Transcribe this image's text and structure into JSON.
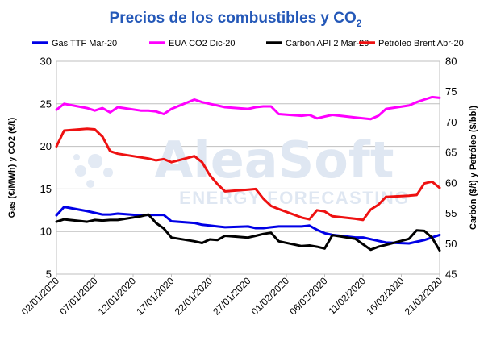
{
  "chart_data": {
    "type": "line",
    "title": {
      "main": "Precios de los combustibles y CO",
      "sub": "2"
    },
    "ylabel_left": "Gas (€/MWh) y CO2 (€/t)",
    "ylabel_right": "Carbón ($/t) y Petróleo ($/bbl)",
    "ylim_left": [
      5,
      30
    ],
    "ylim_right": [
      45,
      80
    ],
    "yticks_left": [
      "5",
      "10",
      "15",
      "20",
      "25",
      "30"
    ],
    "yticks_right": [
      "45",
      "50",
      "55",
      "60",
      "65",
      "70",
      "75",
      "80"
    ],
    "xlim": [
      "2020-01-02",
      "2020-02-21"
    ],
    "xticks": [
      "02/01/2020",
      "07/01/2020",
      "12/01/2020",
      "17/01/2020",
      "22/01/2020",
      "27/01/2020",
      "01/02/2020",
      "06/02/2020",
      "11/02/2020",
      "16/02/2020",
      "21/02/2020"
    ],
    "grid": "horizontal",
    "legend_position": "top",
    "watermark": {
      "line1": "AleaSoft",
      "line2": "ENERGY FORECASTING"
    },
    "series": [
      {
        "name": "Gas TTF Mar-20",
        "axis": "left",
        "color": "#0000e6",
        "points": [
          [
            "2020-01-02",
            11.9
          ],
          [
            "2020-01-03",
            12.9
          ],
          [
            "2020-01-06",
            12.4
          ],
          [
            "2020-01-07",
            12.2
          ],
          [
            "2020-01-08",
            12.0
          ],
          [
            "2020-01-09",
            12.0
          ],
          [
            "2020-01-10",
            12.1
          ],
          [
            "2020-01-13",
            11.9
          ],
          [
            "2020-01-14",
            11.95
          ],
          [
            "2020-01-15",
            11.95
          ],
          [
            "2020-01-16",
            11.95
          ],
          [
            "2020-01-17",
            11.2
          ],
          [
            "2020-01-20",
            11.0
          ],
          [
            "2020-01-21",
            10.8
          ],
          [
            "2020-01-22",
            10.7
          ],
          [
            "2020-01-23",
            10.6
          ],
          [
            "2020-01-24",
            10.5
          ],
          [
            "2020-01-27",
            10.6
          ],
          [
            "2020-01-28",
            10.4
          ],
          [
            "2020-01-29",
            10.4
          ],
          [
            "2020-01-30",
            10.5
          ],
          [
            "2020-01-31",
            10.6
          ],
          [
            "2020-02-03",
            10.6
          ],
          [
            "2020-02-04",
            10.7
          ],
          [
            "2020-02-05",
            10.2
          ],
          [
            "2020-02-06",
            9.8
          ],
          [
            "2020-02-07",
            9.6
          ],
          [
            "2020-02-10",
            9.3
          ],
          [
            "2020-02-11",
            9.3
          ],
          [
            "2020-02-12",
            9.1
          ],
          [
            "2020-02-13",
            8.9
          ],
          [
            "2020-02-14",
            8.7
          ],
          [
            "2020-02-17",
            8.6
          ],
          [
            "2020-02-18",
            8.8
          ],
          [
            "2020-02-19",
            9.0
          ],
          [
            "2020-02-20",
            9.3
          ],
          [
            "2020-02-21",
            9.6
          ]
        ]
      },
      {
        "name": "EUA CO2 Dic-20",
        "axis": "left",
        "color": "#ff00ff",
        "points": [
          [
            "2020-01-02",
            24.3
          ],
          [
            "2020-01-03",
            25.0
          ],
          [
            "2020-01-06",
            24.5
          ],
          [
            "2020-01-07",
            24.2
          ],
          [
            "2020-01-08",
            24.5
          ],
          [
            "2020-01-09",
            24.0
          ],
          [
            "2020-01-10",
            24.6
          ],
          [
            "2020-01-13",
            24.2
          ],
          [
            "2020-01-14",
            24.2
          ],
          [
            "2020-01-15",
            24.1
          ],
          [
            "2020-01-16",
            23.8
          ],
          [
            "2020-01-17",
            24.4
          ],
          [
            "2020-01-20",
            25.5
          ],
          [
            "2020-01-21",
            25.2
          ],
          [
            "2020-01-22",
            25.0
          ],
          [
            "2020-01-23",
            24.8
          ],
          [
            "2020-01-24",
            24.6
          ],
          [
            "2020-01-27",
            24.4
          ],
          [
            "2020-01-28",
            24.6
          ],
          [
            "2020-01-29",
            24.7
          ],
          [
            "2020-01-30",
            24.7
          ],
          [
            "2020-01-31",
            23.8
          ],
          [
            "2020-02-03",
            23.6
          ],
          [
            "2020-02-04",
            23.7
          ],
          [
            "2020-02-05",
            23.3
          ],
          [
            "2020-02-06",
            23.5
          ],
          [
            "2020-02-07",
            23.7
          ],
          [
            "2020-02-10",
            23.4
          ],
          [
            "2020-02-11",
            23.3
          ],
          [
            "2020-02-12",
            23.2
          ],
          [
            "2020-02-13",
            23.6
          ],
          [
            "2020-02-14",
            24.4
          ],
          [
            "2020-02-17",
            24.8
          ],
          [
            "2020-02-18",
            25.2
          ],
          [
            "2020-02-19",
            25.5
          ],
          [
            "2020-02-20",
            25.8
          ],
          [
            "2020-02-21",
            25.7
          ]
        ]
      },
      {
        "name": "Carbón API 2 Mar-20",
        "axis": "right",
        "color": "#000000",
        "points": [
          [
            "2020-01-02",
            53.6
          ],
          [
            "2020-01-03",
            54.0
          ],
          [
            "2020-01-06",
            53.6
          ],
          [
            "2020-01-07",
            53.9
          ],
          [
            "2020-01-08",
            53.8
          ],
          [
            "2020-01-09",
            53.9
          ],
          [
            "2020-01-10",
            53.9
          ],
          [
            "2020-01-13",
            54.5
          ],
          [
            "2020-01-14",
            54.8
          ],
          [
            "2020-01-15",
            53.4
          ],
          [
            "2020-01-16",
            52.5
          ],
          [
            "2020-01-17",
            51.0
          ],
          [
            "2020-01-20",
            50.4
          ],
          [
            "2020-01-21",
            50.1
          ],
          [
            "2020-01-22",
            50.7
          ],
          [
            "2020-01-23",
            50.6
          ],
          [
            "2020-01-24",
            51.3
          ],
          [
            "2020-01-27",
            51.0
          ],
          [
            "2020-01-28",
            51.3
          ],
          [
            "2020-01-29",
            51.6
          ],
          [
            "2020-01-30",
            51.8
          ],
          [
            "2020-01-31",
            50.4
          ],
          [
            "2020-02-03",
            49.6
          ],
          [
            "2020-02-04",
            49.7
          ],
          [
            "2020-02-05",
            49.5
          ],
          [
            "2020-02-06",
            49.2
          ],
          [
            "2020-02-07",
            51.4
          ],
          [
            "2020-02-10",
            50.8
          ],
          [
            "2020-02-11",
            49.9
          ],
          [
            "2020-02-12",
            49.0
          ],
          [
            "2020-02-13",
            49.5
          ],
          [
            "2020-02-14",
            49.8
          ],
          [
            "2020-02-17",
            50.8
          ],
          [
            "2020-02-18",
            52.2
          ],
          [
            "2020-02-19",
            52.1
          ],
          [
            "2020-02-20",
            51.0
          ],
          [
            "2020-02-21",
            48.9
          ]
        ]
      },
      {
        "name": "Petróleo Brent Abr-20",
        "axis": "right",
        "color": "#ee1111",
        "points": [
          [
            "2020-01-02",
            66.0
          ],
          [
            "2020-01-03",
            68.6
          ],
          [
            "2020-01-06",
            68.9
          ],
          [
            "2020-01-07",
            68.8
          ],
          [
            "2020-01-08",
            67.6
          ],
          [
            "2020-01-09",
            65.2
          ],
          [
            "2020-01-10",
            64.8
          ],
          [
            "2020-01-13",
            64.2
          ],
          [
            "2020-01-14",
            64.0
          ],
          [
            "2020-01-15",
            63.7
          ],
          [
            "2020-01-16",
            63.9
          ],
          [
            "2020-01-17",
            63.4
          ],
          [
            "2020-01-20",
            64.4
          ],
          [
            "2020-01-21",
            63.4
          ],
          [
            "2020-01-22",
            61.3
          ],
          [
            "2020-01-23",
            59.8
          ],
          [
            "2020-01-24",
            58.6
          ],
          [
            "2020-01-27",
            58.9
          ],
          [
            "2020-01-28",
            59.0
          ],
          [
            "2020-01-29",
            57.4
          ],
          [
            "2020-01-30",
            56.2
          ],
          [
            "2020-01-31",
            55.7
          ],
          [
            "2020-02-03",
            54.3
          ],
          [
            "2020-02-04",
            54.0
          ],
          [
            "2020-02-05",
            55.5
          ],
          [
            "2020-02-06",
            55.3
          ],
          [
            "2020-02-07",
            54.5
          ],
          [
            "2020-02-10",
            54.1
          ],
          [
            "2020-02-11",
            53.9
          ],
          [
            "2020-02-12",
            55.6
          ],
          [
            "2020-02-13",
            56.4
          ],
          [
            "2020-02-14",
            57.7
          ],
          [
            "2020-02-17",
            57.9
          ],
          [
            "2020-02-18",
            58.0
          ],
          [
            "2020-02-19",
            59.9
          ],
          [
            "2020-02-20",
            60.2
          ],
          [
            "2020-02-21",
            59.2
          ]
        ]
      }
    ]
  }
}
